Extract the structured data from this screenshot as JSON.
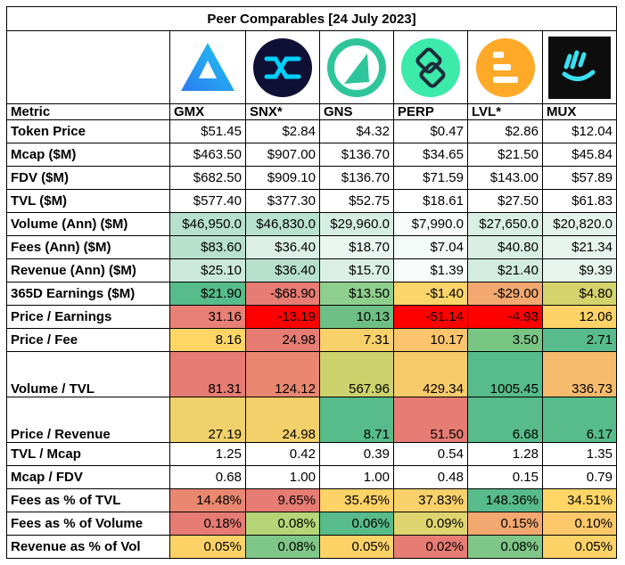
{
  "title": "Peer Comparables [24 July 2023]",
  "metric_header": "Metric",
  "columns": [
    "GMX",
    "SNX*",
    "GNS",
    "PERP",
    "LVL*",
    "MUX"
  ],
  "logos": [
    "gmx-logo",
    "snx-logo",
    "gns-logo",
    "perp-logo",
    "lvl-logo",
    "mux-logo"
  ],
  "rows": [
    {
      "label": "Token Price",
      "values": [
        "$51.45",
        "$2.84",
        "$4.32",
        "$0.47",
        "$2.86",
        "$12.04"
      ],
      "colors": [
        "#ffffff",
        "#ffffff",
        "#ffffff",
        "#ffffff",
        "#ffffff",
        "#ffffff"
      ]
    },
    {
      "label": "Mcap ($M)",
      "values": [
        "$463.50",
        "$907.00",
        "$136.70",
        "$34.65",
        "$21.50",
        "$45.84"
      ],
      "colors": [
        "#ffffff",
        "#ffffff",
        "#ffffff",
        "#ffffff",
        "#ffffff",
        "#ffffff"
      ]
    },
    {
      "label": "FDV ($M)",
      "values": [
        "$682.50",
        "$909.10",
        "$136.70",
        "$71.59",
        "$143.00",
        "$57.89"
      ],
      "colors": [
        "#ffffff",
        "#ffffff",
        "#ffffff",
        "#ffffff",
        "#ffffff",
        "#ffffff"
      ]
    },
    {
      "label": "TVL ($M)",
      "values": [
        "$577.40",
        "$377.30",
        "$52.75",
        "$18.61",
        "$27.50",
        "$61.83"
      ],
      "colors": [
        "#ffffff",
        "#ffffff",
        "#ffffff",
        "#ffffff",
        "#ffffff",
        "#ffffff"
      ]
    },
    {
      "label": "Volume (Ann) ($M)",
      "values": [
        "$46,950.0",
        "$46,830.0",
        "$29,960.0",
        "$7,990.0",
        "$27,650.0",
        "$20,820.0"
      ],
      "colors": [
        "#b7e1cd",
        "#b8e1ce",
        "#d6eee2",
        "#f7fbf9",
        "#d9efe4",
        "#e4f4ec"
      ]
    },
    {
      "label": "Fees (Ann) ($M)",
      "values": [
        "$83.60",
        "$36.40",
        "$18.70",
        "$7.04",
        "$40.80",
        "$21.34"
      ],
      "colors": [
        "#b7e1cd",
        "#dcf0e6",
        "#eaf6f0",
        "#f4faf7",
        "#d9efe4",
        "#e8f5ee"
      ]
    },
    {
      "label": "Revenue (Ann) ($M)",
      "values": [
        "$25.10",
        "$36.40",
        "$15.70",
        "$1.39",
        "$21.40",
        "$9.39"
      ],
      "colors": [
        "#cbe9da",
        "#b7e1cd",
        "#dbf0e5",
        "#f7fbf9",
        "#d2ecdf",
        "#e6f4ed"
      ]
    },
    {
      "label": "365D Earnings ($M)",
      "values": [
        "$21.90",
        "-$68.90",
        "$13.50",
        "-$1.40",
        "-$29.00",
        "$4.80"
      ],
      "colors": [
        "#57bb8a",
        "#e67c73",
        "#8fcf8e",
        "#fbd46a",
        "#f2a86f",
        "#d4d36c"
      ]
    },
    {
      "label": "Price / Earnings",
      "values": [
        "31.16",
        "-13.19",
        "10.13",
        "-51.14",
        "-4.93",
        "12.06"
      ],
      "colors": [
        "#e98075",
        "#ff0000",
        "#6ebf85",
        "#ff0000",
        "#ff0000",
        "#fdd267"
      ]
    },
    {
      "label": "Price / Fee",
      "values": [
        "8.16",
        "24.98",
        "7.31",
        "10.17",
        "3.50",
        "2.71"
      ],
      "colors": [
        "#ffd666",
        "#e67c73",
        "#f9d16b",
        "#fcc46c",
        "#79c684",
        "#57bb8a"
      ]
    },
    {
      "label": "Volume / TVL",
      "values": [
        "81.31",
        "124.12",
        "567.96",
        "429.34",
        "1005.45",
        "336.73"
      ],
      "colors": [
        "#e67c73",
        "#ea8771",
        "#ccd36c",
        "#f8cb6a",
        "#57bb8a",
        "#f7bb6d"
      ],
      "tall": true
    },
    {
      "label": "Price / Revenue",
      "values": [
        "27.19",
        "24.98",
        "8.71",
        "51.50",
        "6.68",
        "6.17"
      ],
      "colors": [
        "#efd26b",
        "#f4d06b",
        "#57bb8a",
        "#e67c73",
        "#57bb8a",
        "#57bb8a"
      ],
      "tall": true
    },
    {
      "label": "TVL / Mcap",
      "values": [
        "1.25",
        "0.42",
        "0.39",
        "0.54",
        "1.28",
        "1.35"
      ],
      "colors": [
        "#ffffff",
        "#ffffff",
        "#ffffff",
        "#ffffff",
        "#ffffff",
        "#ffffff"
      ]
    },
    {
      "label": "Mcap / FDV",
      "values": [
        "0.68",
        "1.00",
        "1.00",
        "0.48",
        "0.15",
        "0.79"
      ],
      "colors": [
        "#ffffff",
        "#ffffff",
        "#ffffff",
        "#ffffff",
        "#ffffff",
        "#ffffff"
      ]
    },
    {
      "label": "Fees as % of TVL",
      "values": [
        "14.48%",
        "9.65%",
        "35.45%",
        "37.83%",
        "148.36%",
        "34.51%"
      ],
      "colors": [
        "#ea8771",
        "#e67c73",
        "#fdd267",
        "#f9d16b",
        "#57bb8a",
        "#ffd666"
      ]
    },
    {
      "label": "Fees as % of Volume",
      "values": [
        "0.18%",
        "0.08%",
        "0.06%",
        "0.09%",
        "0.15%",
        "0.10%"
      ],
      "colors": [
        "#e67c73",
        "#b5d577",
        "#57bb8a",
        "#dfd46f",
        "#f2a86f",
        "#fcc869"
      ]
    },
    {
      "label": "Revenue as % of Vol",
      "values": [
        "0.05%",
        "0.08%",
        "0.05%",
        "0.02%",
        "0.08%",
        "0.05%"
      ],
      "colors": [
        "#fdd267",
        "#7fc689",
        "#fdd267",
        "#e67c73",
        "#7fc689",
        "#fdd267"
      ]
    }
  ]
}
